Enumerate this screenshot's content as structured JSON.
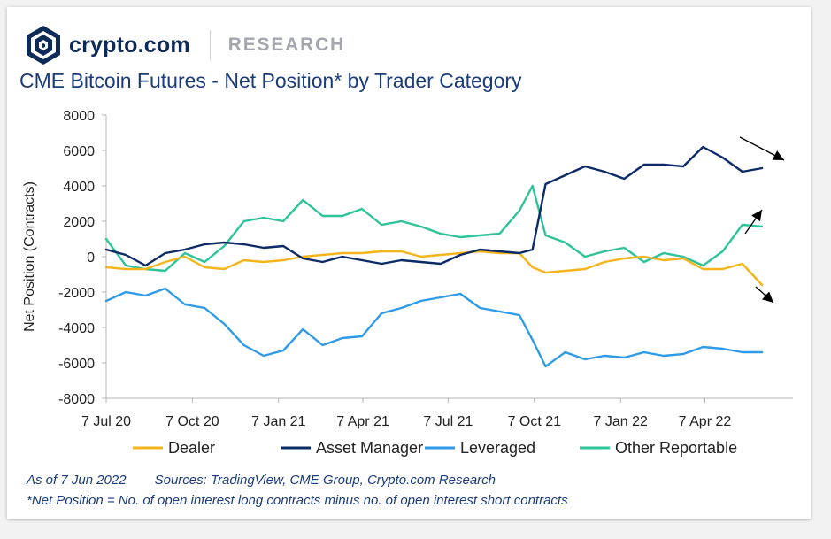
{
  "header": {
    "brand": "crypto.com",
    "section": "RESEARCH"
  },
  "title": "CME Bitcoin Futures - Net Position* by Trader Category",
  "footer": {
    "asof": "As of 7 Jun 2022",
    "sources": "Sources: TradingView, CME Group, Crypto.com Research",
    "note": "*Net Position = No. of open interest long contracts minus no. of open interest short contracts"
  },
  "colors": {
    "brand": "#0e2a56",
    "dealer": "#f3b51b",
    "asset_manager": "#0c2a66",
    "leveraged": "#2f9be8",
    "other_reportable": "#2ec39a"
  },
  "chart_data": {
    "type": "line",
    "title": "",
    "xlabel": "",
    "ylabel": "Net Position (Contracts)",
    "ylim": [
      -8000,
      8000
    ],
    "yticks": [
      8000,
      6000,
      4000,
      2000,
      0,
      -2000,
      -4000,
      -6000,
      -8000
    ],
    "ytick_labels": [
      "8000",
      "6000",
      "4000",
      "2000",
      "0",
      "-2000",
      "-4000",
      "-6000",
      "-8000"
    ],
    "xticks": [
      "7 Jul 20",
      "7 Oct 20",
      "7 Jan 21",
      "7 Apr 21",
      "7 Jul 21",
      "7 Oct 21",
      "7 Jan 22",
      "7 Apr 22"
    ],
    "x_range": [
      "7 Jul 20",
      "7 Jun 22"
    ],
    "legend_position": "bottom",
    "grid": false,
    "x": [
      "2020-07-07",
      "2020-07-28",
      "2020-08-18",
      "2020-09-08",
      "2020-09-29",
      "2020-10-20",
      "2020-11-10",
      "2020-12-01",
      "2020-12-22",
      "2021-01-12",
      "2021-02-02",
      "2021-02-23",
      "2021-03-16",
      "2021-04-06",
      "2021-04-27",
      "2021-05-18",
      "2021-06-08",
      "2021-06-29",
      "2021-07-20",
      "2021-08-10",
      "2021-08-31",
      "2021-09-21",
      "2021-10-05",
      "2021-10-19",
      "2021-11-09",
      "2021-11-30",
      "2021-12-21",
      "2022-01-11",
      "2022-02-01",
      "2022-02-22",
      "2022-03-15",
      "2022-04-05",
      "2022-04-26",
      "2022-05-17",
      "2022-06-07"
    ],
    "series": [
      {
        "name": "Dealer",
        "color": "#f3b51b",
        "values": [
          -600,
          -700,
          -700,
          -300,
          0,
          -600,
          -700,
          -200,
          -300,
          -200,
          0,
          100,
          200,
          200,
          300,
          300,
          0,
          100,
          200,
          300,
          200,
          200,
          -600,
          -900,
          -800,
          -700,
          -300,
          -100,
          0,
          -200,
          -100,
          -700,
          -700,
          -400,
          -1600
        ]
      },
      {
        "name": "Asset Manager",
        "color": "#0c2a66",
        "values": [
          400,
          100,
          -500,
          200,
          400,
          700,
          800,
          700,
          500,
          600,
          -100,
          -300,
          0,
          -200,
          -400,
          -200,
          -300,
          -400,
          100,
          400,
          300,
          200,
          400,
          4100,
          4600,
          5100,
          4800,
          4400,
          5200,
          5200,
          5100,
          6200,
          5600,
          4800,
          5000
        ]
      },
      {
        "name": "Leveraged",
        "color": "#2f9be8",
        "values": [
          -2500,
          -2000,
          -2200,
          -1800,
          -2700,
          -2900,
          -3800,
          -5000,
          -5600,
          -5300,
          -4100,
          -5000,
          -4600,
          -4500,
          -3200,
          -2900,
          -2500,
          -2300,
          -2100,
          -2900,
          -3100,
          -3300,
          -4700,
          -6200,
          -5400,
          -5800,
          -5600,
          -5700,
          -5400,
          -5600,
          -5500,
          -5100,
          -5200,
          -5400,
          -5400
        ]
      },
      {
        "name": "Other Reportable",
        "color": "#2ec39a",
        "values": [
          1000,
          -500,
          -700,
          -800,
          200,
          -300,
          600,
          2000,
          2200,
          2000,
          3200,
          2300,
          2300,
          2700,
          1800,
          2000,
          1700,
          1300,
          1100,
          1200,
          1300,
          2600,
          4000,
          1200,
          800,
          0,
          300,
          500,
          -300,
          200,
          0,
          -500,
          300,
          1800,
          1700
        ]
      }
    ]
  }
}
